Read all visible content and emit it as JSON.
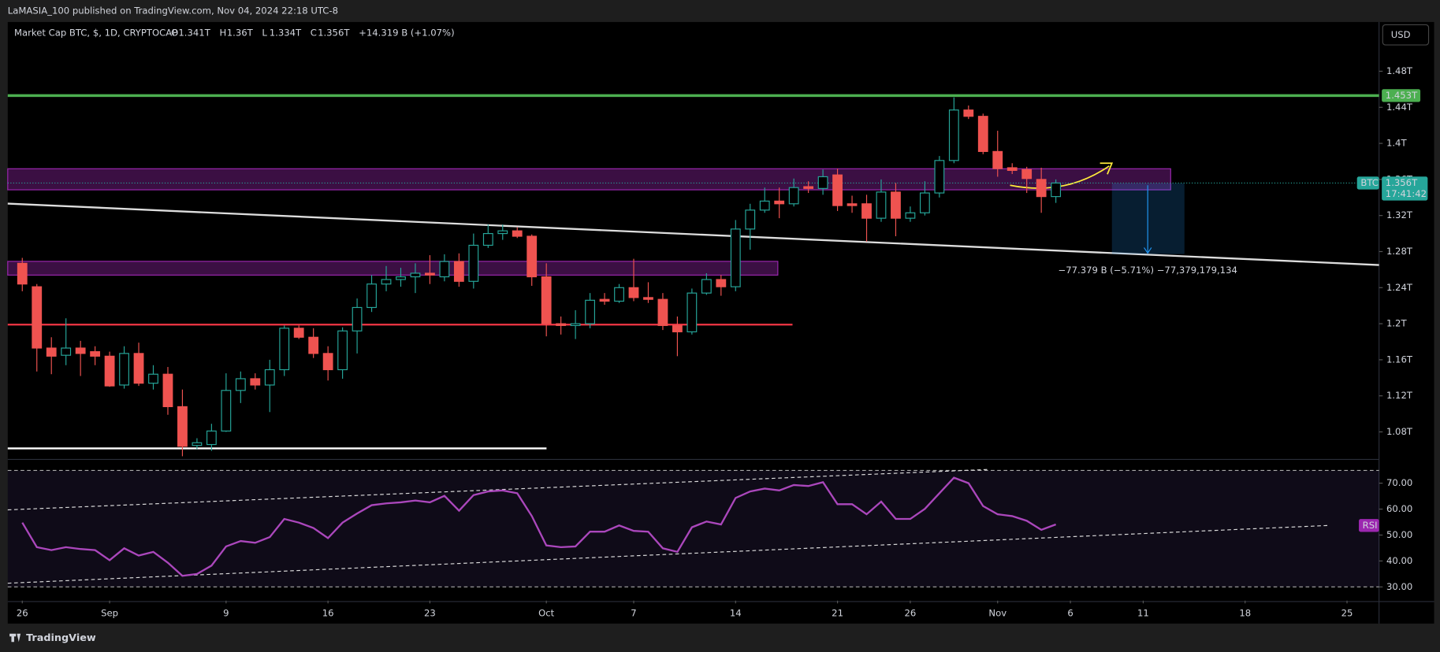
{
  "header": {
    "publisher": "LaMASIA_100 published on TradingView.com, Nov 04, 2024 22:18 UTC-8",
    "symbol": "Market Cap BTC, $, 1D, CRYPTOCAP",
    "ohlc": [
      {
        "key": "O",
        "text": "1.341T"
      },
      {
        "key": "H",
        "text": "1.36T"
      },
      {
        "key": "L",
        "text": "1.334T"
      },
      {
        "key": "C",
        "text": "1.356T"
      }
    ],
    "change": "+14.319 B (+1.07%)",
    "currency": "USD"
  },
  "footer": {
    "brand": "TradingView"
  },
  "chart_data": {
    "type": "candlestick",
    "up_color": "#26a69a",
    "down_color": "#ef5350",
    "x": [
      0,
      1,
      2,
      3,
      4,
      5,
      6,
      7,
      8,
      9,
      10,
      11,
      12,
      13,
      14,
      15,
      16,
      17,
      18,
      19,
      20,
      21,
      22,
      23,
      24,
      25,
      26,
      27,
      28,
      29,
      30,
      31,
      32,
      33,
      34,
      35,
      36,
      37,
      38,
      39,
      40,
      41,
      42,
      43,
      44,
      45,
      46,
      47,
      48,
      49,
      50,
      51,
      52,
      53,
      54,
      55,
      56,
      57,
      58,
      59,
      60,
      61,
      62,
      63,
      64,
      65,
      66,
      67,
      68,
      69,
      70,
      71
    ],
    "open": [
      1.267,
      1.241,
      1.173,
      1.165,
      1.173,
      1.169,
      1.164,
      1.132,
      1.167,
      1.134,
      1.144,
      1.108,
      1.065,
      1.066,
      1.081,
      1.126,
      1.139,
      1.132,
      1.149,
      1.195,
      1.185,
      1.167,
      1.149,
      1.192,
      1.218,
      1.244,
      1.249,
      1.252,
      1.256,
      1.252,
      1.269,
      1.247,
      1.287,
      1.3,
      1.303,
      1.297,
      1.252,
      1.2,
      1.198,
      1.2,
      1.227,
      1.225,
      1.24,
      1.229,
      1.227,
      1.198,
      1.191,
      1.234,
      1.249,
      1.241,
      1.305,
      1.326,
      1.336,
      1.333,
      1.352,
      1.35,
      1.365,
      1.333,
      1.333,
      1.317,
      1.346,
      1.317,
      1.323,
      1.345,
      1.381,
      1.437,
      1.43,
      1.391,
      1.373,
      1.371,
      1.36,
      1.341
    ],
    "high": [
      1.273,
      1.244,
      1.185,
      1.206,
      1.181,
      1.175,
      1.169,
      1.175,
      1.179,
      1.154,
      1.152,
      1.127,
      1.073,
      1.089,
      1.145,
      1.147,
      1.145,
      1.16,
      1.198,
      1.198,
      1.195,
      1.175,
      1.196,
      1.228,
      1.254,
      1.264,
      1.262,
      1.267,
      1.276,
      1.277,
      1.278,
      1.3,
      1.31,
      1.31,
      1.307,
      1.299,
      1.267,
      1.208,
      1.215,
      1.234,
      1.234,
      1.244,
      1.272,
      1.246,
      1.234,
      1.208,
      1.239,
      1.256,
      1.254,
      1.315,
      1.333,
      1.351,
      1.351,
      1.361,
      1.358,
      1.371,
      1.372,
      1.342,
      1.343,
      1.36,
      1.356,
      1.33,
      1.358,
      1.386,
      1.451,
      1.442,
      1.433,
      1.414,
      1.378,
      1.374,
      1.373,
      1.36
    ],
    "low": [
      1.236,
      1.147,
      1.144,
      1.154,
      1.142,
      1.154,
      1.13,
      1.128,
      1.131,
      1.127,
      1.099,
      1.053,
      1.061,
      1.059,
      1.08,
      1.112,
      1.127,
      1.102,
      1.142,
      1.183,
      1.162,
      1.137,
      1.139,
      1.167,
      1.213,
      1.236,
      1.241,
      1.234,
      1.244,
      1.247,
      1.241,
      1.239,
      1.284,
      1.293,
      1.295,
      1.242,
      1.186,
      1.188,
      1.183,
      1.195,
      1.221,
      1.223,
      1.225,
      1.223,
      1.193,
      1.164,
      1.188,
      1.232,
      1.231,
      1.236,
      1.282,
      1.323,
      1.317,
      1.33,
      1.345,
      1.343,
      1.325,
      1.323,
      1.291,
      1.313,
      1.297,
      1.313,
      1.32,
      1.34,
      1.378,
      1.427,
      1.388,
      1.363,
      1.366,
      1.345,
      1.323,
      1.334
    ],
    "close": [
      1.244,
      1.173,
      1.164,
      1.173,
      1.167,
      1.164,
      1.131,
      1.167,
      1.134,
      1.144,
      1.108,
      1.064,
      1.068,
      1.081,
      1.126,
      1.139,
      1.132,
      1.149,
      1.195,
      1.185,
      1.167,
      1.149,
      1.192,
      1.218,
      1.244,
      1.249,
      1.252,
      1.256,
      1.254,
      1.269,
      1.247,
      1.287,
      1.3,
      1.303,
      1.297,
      1.252,
      1.2,
      1.198,
      1.2,
      1.226,
      1.225,
      1.24,
      1.229,
      1.227,
      1.198,
      1.191,
      1.234,
      1.249,
      1.241,
      1.305,
      1.326,
      1.336,
      1.333,
      1.351,
      1.35,
      1.363,
      1.331,
      1.331,
      1.317,
      1.346,
      1.317,
      1.323,
      1.345,
      1.381,
      1.437,
      1.43,
      1.391,
      1.372,
      1.37,
      1.361,
      1.341,
      1.356
    ],
    "xlim": [
      -1,
      93.2
    ],
    "xticks": [
      {
        "value": 0,
        "label": "26"
      },
      {
        "value": 6,
        "label": "Sep"
      },
      {
        "value": 14,
        "label": "9"
      },
      {
        "value": 21,
        "label": "16"
      },
      {
        "value": 28,
        "label": "23"
      },
      {
        "value": 36,
        "label": "Oct"
      },
      {
        "value": 42,
        "label": "7"
      },
      {
        "value": 49,
        "label": "14"
      },
      {
        "value": 56,
        "label": "21"
      },
      {
        "value": 61,
        "label": "26"
      },
      {
        "value": 67,
        "label": "Nov"
      },
      {
        "value": 72,
        "label": "6"
      },
      {
        "value": 77,
        "label": "11"
      },
      {
        "value": 84,
        "label": "18"
      },
      {
        "value": 91,
        "label": "25"
      }
    ],
    "ylim": [
      1.0505,
      1.5346
    ],
    "yticks": [
      {
        "value": 1.08,
        "label": "1.08T"
      },
      {
        "value": 1.12,
        "label": "1.12T"
      },
      {
        "value": 1.16,
        "label": "1.16T"
      },
      {
        "value": 1.2,
        "label": "1.2T"
      },
      {
        "value": 1.24,
        "label": "1.24T"
      },
      {
        "value": 1.28,
        "label": "1.28T"
      },
      {
        "value": 1.32,
        "label": "1.32T"
      },
      {
        "value": 1.36,
        "label": "1.36T"
      },
      {
        "value": 1.4,
        "label": "1.4T"
      },
      {
        "value": 1.44,
        "label": "1.44T"
      },
      {
        "value": 1.48,
        "label": "1.48T"
      }
    ],
    "level": {
      "value": 1.453,
      "label": "1.453T",
      "color": "#4caf50"
    },
    "last_price": {
      "name": "BTC",
      "value": 1.356,
      "label": "1.356T",
      "countdown": "17:41:42"
    },
    "measurement": "−77.379 B (−5.71%) −77,379,179,134",
    "rsi": {
      "name": "RSI",
      "color": "#ab47bc",
      "ylim": [
        24.7,
        78.8
      ],
      "yticks": [
        {
          "value": 30,
          "label": "30.00"
        },
        {
          "value": 40,
          "label": "40.00"
        },
        {
          "value": 50,
          "label": "50.00"
        },
        {
          "value": 60,
          "label": "60.00"
        },
        {
          "value": 70,
          "label": "70.00"
        }
      ],
      "values": [
        54.8,
        45.3,
        44.2,
        45.3,
        44.6,
        44.2,
        40.3,
        44.9,
        42.1,
        43.5,
        39.3,
        34.3,
        35,
        38.2,
        45.6,
        47.7,
        47,
        49.2,
        56.2,
        54.8,
        52.7,
        48.8,
        54.8,
        58.3,
        61.5,
        62.2,
        62.6,
        63.3,
        62.6,
        65.1,
        59.4,
        65.4,
        66.8,
        67.2,
        66.1,
        57.3,
        46,
        45.3,
        45.6,
        51.3,
        51.3,
        53.7,
        51.6,
        51.3,
        44.9,
        43.5,
        53,
        55.2,
        54.1,
        64.3,
        66.8,
        67.9,
        67.2,
        69.3,
        68.9,
        70.4,
        61.9,
        61.9,
        58,
        62.9,
        56.2,
        56.2,
        60.1,
        66.1,
        72.1,
        70,
        61.2,
        58,
        57.3,
        55.5,
        52,
        54.1
      ]
    }
  }
}
